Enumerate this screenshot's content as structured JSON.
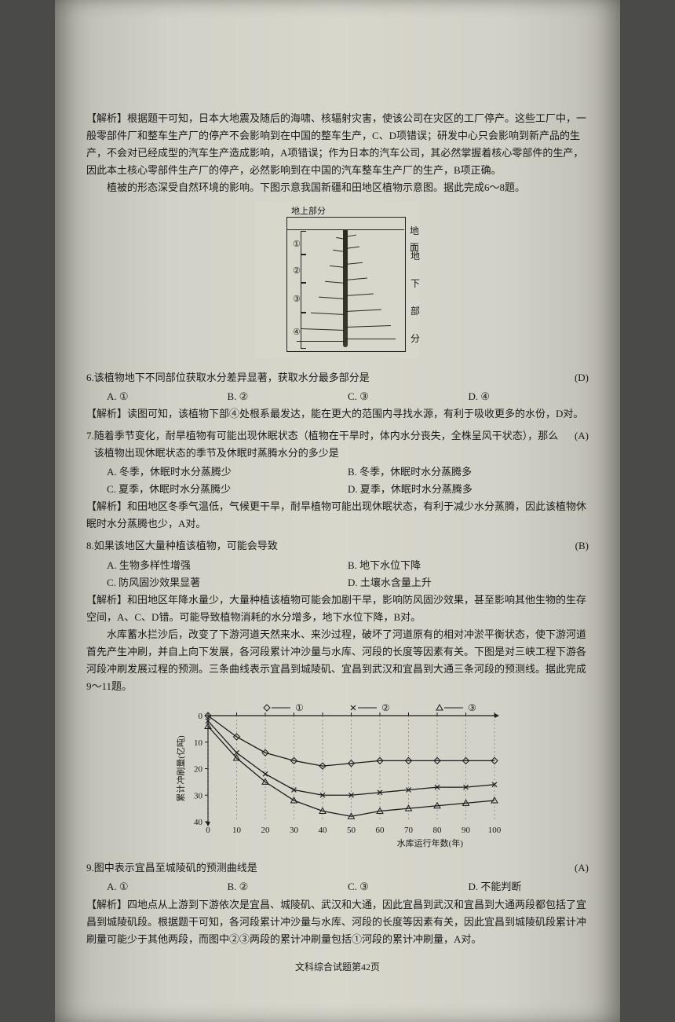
{
  "top_analysis": "【解析】根据题干可知，日本大地震及随后的海啸、核辐射灾害，使该公司在灾区的工厂停产。这些工厂中，一般零部件厂和整车生产厂的停产不会影响到在中国的整车生产，C、D项错误；研发中心只会影响到新产品的生产，不会对已经成型的汽车生产造成影响，A项错误；作为日本的汽车公司，其必然掌握着核心零部件的生产，因此本土核心零部件生产厂的停产，必然影响到在中国的汽车整车生产厂的生产，B项正确。",
  "intro1": "植被的形态深受自然环境的影响。下图示意我国新疆和田地区植物示意图。据此完成6～8题。",
  "fig1": {
    "surface_label": "地上部分",
    "ground_label": "地面",
    "side_labels": [
      "地",
      "下",
      "部",
      "分"
    ],
    "nums": [
      "①",
      "②",
      "③",
      "④"
    ]
  },
  "q6": {
    "num": "6.",
    "stem": "该植物地下不同部位获取水分差异显著，获取水分最多部分是",
    "ans": "(D)",
    "opts": [
      "A. ①",
      "B. ②",
      "C. ③",
      "D. ④"
    ],
    "analysis": "【解析】读图可知，该植物下部④处根系最发达，能在更大的范围内寻找水源，有利于吸收更多的水份，D对。"
  },
  "q7": {
    "num": "7.",
    "stem": "随着季节变化，耐旱植物有可能出现休眠状态（植物在干旱时，体内水分丧失，全株呈风干状态），那么该植物出现休眠状态的季节及休眠时蒸腾水分的多少是",
    "ans": "(A)",
    "opts": [
      "A. 冬季，休眠时水分蒸腾少",
      "B. 冬季，休眠时水分蒸腾多",
      "C. 夏季，休眠时水分蒸腾少",
      "D. 夏季，休眠时水分蒸腾多"
    ],
    "analysis": "【解析】和田地区冬季气温低，气候更干旱，耐旱植物可能出现休眠状态，有利于减少水分蒸腾，因此该植物休眠时水分蒸腾也少，A对。"
  },
  "q8": {
    "num": "8.",
    "stem": "如果该地区大量种植该植物，可能会导致",
    "ans": "(B)",
    "opts": [
      "A. 生物多样性增强",
      "B. 地下水位下降",
      "C. 防风固沙效果显著",
      "D. 土壤水含量上升"
    ],
    "analysis": "【解析】和田地区年降水量少，大量种植该植物可能会加剧干旱，影响防风固沙效果，甚至影响其他生物的生存空间，A、C、D错。可能导致植物消耗的水分增多，地下水位下降，B对。"
  },
  "intro2": "水库蓄水拦沙后，改变了下游河道天然来水、来沙过程，破坏了河道原有的相对冲淤平衡状态，使下游河道首先产生冲刷，并自上向下发展，各河段累计冲沙量与水库、河段的长度等因素有关。下图是对三峡工程下游各河段冲刷发展过程的预测。三条曲线表示宜昌到城陵矶、宜昌到武汉和宜昌到大通三条河段的预测线。据此完成9～11题。",
  "chart": {
    "type": "line",
    "legend": [
      "①",
      "②",
      "③"
    ],
    "markers": [
      "diamond",
      "x",
      "triangle"
    ],
    "x_ticks": [
      0,
      10,
      20,
      30,
      40,
      50,
      60,
      70,
      80,
      90,
      100
    ],
    "y_ticks": [
      0,
      10,
      20,
      30,
      40
    ],
    "x_label": "水库运行年数(年)",
    "y_label": "累计冲刷量(亿吨)",
    "series": {
      "1": [
        [
          0,
          0
        ],
        [
          10,
          8
        ],
        [
          20,
          14
        ],
        [
          30,
          17
        ],
        [
          40,
          19
        ],
        [
          50,
          18
        ],
        [
          60,
          17
        ],
        [
          70,
          17
        ],
        [
          80,
          17
        ],
        [
          90,
          17
        ],
        [
          100,
          17
        ]
      ],
      "2": [
        [
          0,
          2
        ],
        [
          10,
          14
        ],
        [
          20,
          22
        ],
        [
          30,
          28
        ],
        [
          40,
          30
        ],
        [
          50,
          30
        ],
        [
          60,
          29
        ],
        [
          70,
          28
        ],
        [
          80,
          27
        ],
        [
          90,
          27
        ],
        [
          100,
          26
        ]
      ],
      "3": [
        [
          0,
          4
        ],
        [
          10,
          16
        ],
        [
          20,
          25
        ],
        [
          30,
          32
        ],
        [
          40,
          36
        ],
        [
          50,
          38
        ],
        [
          60,
          36
        ],
        [
          70,
          35
        ],
        [
          80,
          34
        ],
        [
          90,
          33
        ],
        [
          100,
          32
        ]
      ]
    },
    "colors": {
      "axis": "#1a1a1a",
      "grid": "#555",
      "line": "#1a1a1a",
      "bg": "#d8d7cc"
    }
  },
  "q9": {
    "num": "9.",
    "stem": "图中表示宜昌至城陵矶的预测曲线是",
    "ans": "(A)",
    "opts": [
      "A. ①",
      "B. ②",
      "C. ③",
      "D. 不能判断"
    ],
    "analysis": "【解析】四地点从上游到下游依次是宜昌、城陵矶、武汉和大通，因此宜昌到武汉和宜昌到大通两段都包括了宜昌到城陵矶段。根据题干可知，各河段累计冲沙量与水库、河段的长度等因素有关，因此宜昌到城陵矶段累计冲刷量可能少于其他两段，而图中②③两段的累计冲刷量包括①河段的累计冲刷量，A对。"
  },
  "footer": "文科综合试题第42页"
}
